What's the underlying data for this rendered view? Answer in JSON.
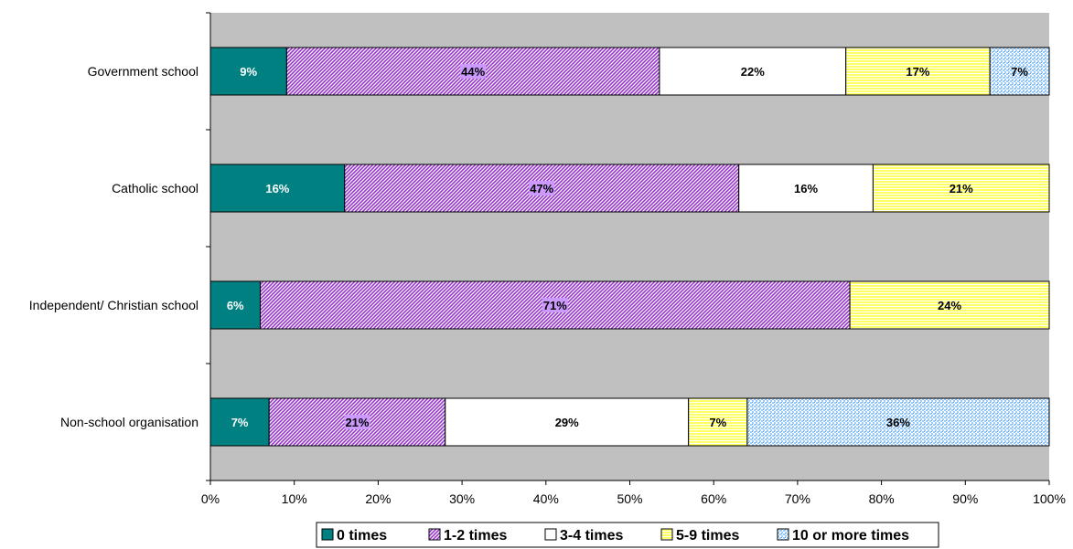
{
  "chart_data": {
    "type": "bar",
    "orientation": "horizontal",
    "stacked": "percent",
    "categories": [
      "Government school",
      "Catholic school",
      "Independent/ Christian school",
      "Non-school organisation"
    ],
    "series": [
      {
        "name": "0 times",
        "values": [
          9,
          16,
          6,
          7
        ],
        "labels": [
          "9%",
          "16%",
          "6%",
          "7%"
        ],
        "color": "#008080",
        "pattern": "solid"
      },
      {
        "name": "1-2 times",
        "values": [
          44,
          47,
          71,
          21
        ],
        "labels": [
          "44%",
          "47%",
          "71%",
          "21%"
        ],
        "color": "#9933cc",
        "pattern": "diagonal-hatch"
      },
      {
        "name": "3-4 times",
        "values": [
          22,
          16,
          0,
          29
        ],
        "labels": [
          "22%",
          "16%",
          "",
          "29%"
        ],
        "color": "#ffffff",
        "pattern": "solid"
      },
      {
        "name": "5-9 times",
        "values": [
          17,
          21,
          24,
          7
        ],
        "labels": [
          "17%",
          "21%",
          "24%",
          "7%"
        ],
        "color": "#ffff66",
        "pattern": "horizontal-stripes"
      },
      {
        "name": "10 or more times",
        "values": [
          7,
          0,
          0,
          36
        ],
        "labels": [
          "7%",
          "",
          "",
          "36%"
        ],
        "color": "#99ccff",
        "pattern": "dots"
      }
    ],
    "xlim": [
      0,
      100
    ],
    "x_ticks": [
      "0%",
      "10%",
      "20%",
      "30%",
      "40%",
      "50%",
      "60%",
      "70%",
      "80%",
      "90%",
      "100%"
    ],
    "plot_background": "#c0c0c0",
    "grid": false,
    "legend_position": "bottom",
    "title": "",
    "xlabel": "",
    "ylabel": ""
  }
}
